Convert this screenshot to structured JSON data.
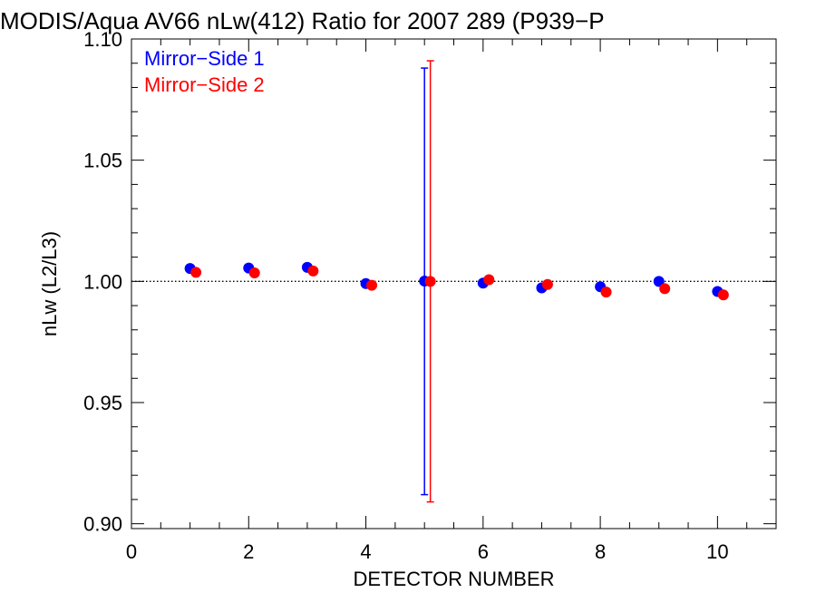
{
  "chart_data": {
    "type": "scatter",
    "title": "MODIS/Aqua AV66 nLw(412) Ratio for 2007 289 (P939−P",
    "xlabel": "DETECTOR NUMBER",
    "ylabel": "nLw (L2/L3)",
    "xlim": [
      0,
      11
    ],
    "ylim": [
      0.898,
      1.1
    ],
    "x_ticks": [
      0,
      2,
      4,
      6,
      8,
      10
    ],
    "x_tick_labels": [
      "0",
      "2",
      "4",
      "6",
      "8",
      "10"
    ],
    "x_minor_step": 0.5,
    "y_ticks": [
      0.9,
      0.95,
      1.0,
      1.05,
      1.1
    ],
    "y_tick_labels": [
      "0.90",
      "0.95",
      "1.00",
      "1.05",
      "1.10"
    ],
    "y_minor_step": 0.01,
    "reference_line": {
      "y": 1.0,
      "style": "dotted",
      "color": "#000000"
    },
    "legend_position": "top-left",
    "grid": false,
    "series": [
      {
        "name": "Mirror−Side 1",
        "color": "#0000ff",
        "x": [
          1,
          2,
          3,
          4,
          5,
          6,
          7,
          8,
          9,
          10
        ],
        "y": [
          1.0053,
          1.0055,
          1.0058,
          0.9991,
          1.0001,
          0.9993,
          0.9973,
          0.9978,
          1.0,
          0.9958
        ],
        "error_bar": {
          "x": 5,
          "low": 0.912,
          "high": 1.088
        }
      },
      {
        "name": "Mirror−Side 2",
        "color": "#ff0000",
        "x": [
          1.1,
          2.1,
          3.1,
          4.1,
          5.1,
          6.1,
          7.1,
          8.1,
          9.1,
          10.1
        ],
        "y": [
          1.0037,
          1.0035,
          1.0043,
          0.9984,
          1.0,
          1.0007,
          0.9987,
          0.9956,
          0.997,
          0.9944
        ],
        "error_bar": {
          "x": 5.1,
          "low": 0.909,
          "high": 1.091
        }
      }
    ]
  }
}
